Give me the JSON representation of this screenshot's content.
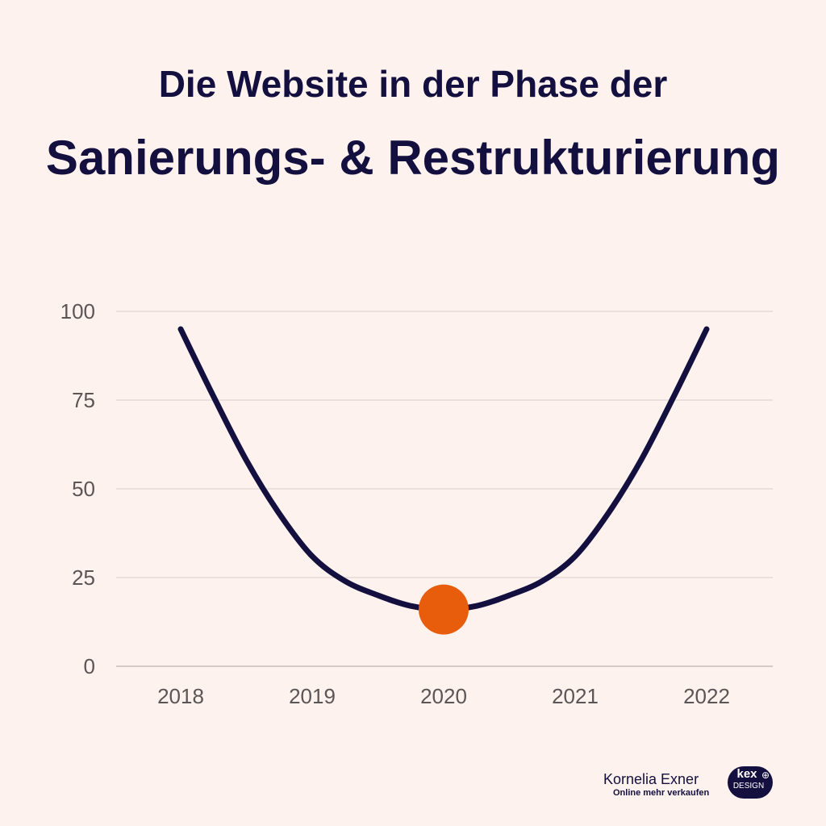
{
  "header": {
    "title_line_1": "Die Website in der Phase der",
    "title_line_2": "Sanierungs- & Restrukturierung"
  },
  "chart_data": {
    "type": "line",
    "title": "Die Website in der Phase der Sanierungs- & Restrukturierung",
    "xlabel": "",
    "ylabel": "",
    "categories": [
      "2018",
      "2019",
      "2020",
      "2021",
      "2022"
    ],
    "x_ticks": [
      "2018",
      "2019",
      "2020",
      "2021",
      "2022"
    ],
    "y_ticks": [
      "0",
      "25",
      "50",
      "75",
      "100"
    ],
    "ylim": [
      0,
      100
    ],
    "series": [
      {
        "x": [
          2018,
          2018.25,
          2018.5,
          2018.75,
          2019,
          2019.25,
          2019.5,
          2019.75,
          2020,
          2020.25,
          2020.5,
          2020.75,
          2021,
          2021.25,
          2021.5,
          2021.75,
          2022
        ],
        "values": [
          95,
          76,
          58,
          43,
          31,
          24,
          20,
          17,
          16,
          17,
          20,
          24,
          31,
          43,
          58,
          76,
          95
        ]
      }
    ],
    "highlight_point": {
      "x": 2020,
      "y": 16
    },
    "grid": true,
    "colors": {
      "line": "#13103f",
      "highlight": "#e85d0c",
      "grid": "#d9cfcc",
      "tick_text": "#5b5555"
    }
  },
  "branding": {
    "name": "Kornelia Exner",
    "tagline": "Online mehr verkaufen",
    "logo_top": "kex",
    "logo_bottom": "DESIGN"
  }
}
